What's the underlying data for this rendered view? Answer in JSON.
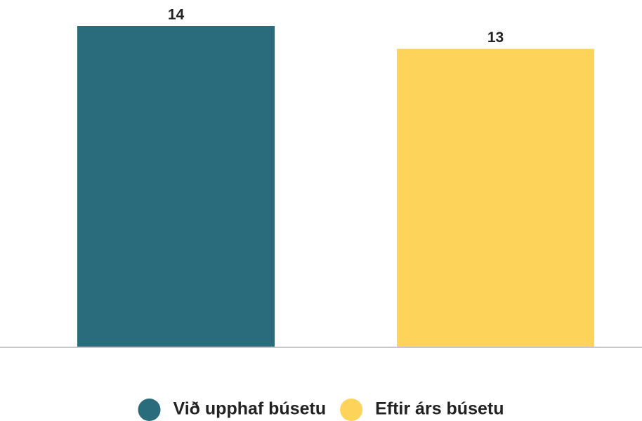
{
  "chart_data": {
    "type": "bar",
    "series": [
      {
        "name": "Við upphaf búsetu",
        "color": "#2a6b7c",
        "values": [
          14
        ]
      },
      {
        "name": "Eftir árs búsetu",
        "color": "#fdd35a",
        "values": [
          13
        ]
      }
    ]
  }
}
